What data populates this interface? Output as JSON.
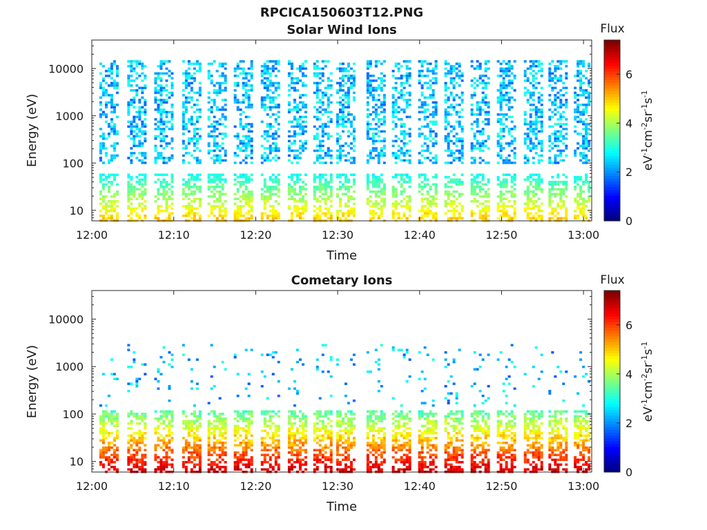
{
  "figure": {
    "title": "RPCICA150603T12.PNG"
  },
  "chart_data": [
    {
      "type": "heatmap",
      "title": "Solar Wind Ions",
      "xlabel": "Time",
      "ylabel": "Energy (eV)",
      "x_tick_labels": [
        "12:00",
        "12:10",
        "12:20",
        "12:30",
        "12:40",
        "12:50",
        "13:00"
      ],
      "x_ticks_minutes": [
        0,
        10,
        20,
        30,
        40,
        50,
        60
      ],
      "xlim_minutes": [
        0,
        61
      ],
      "y_scale": "log",
      "y_tick_labels": [
        "10",
        "100",
        "1000",
        "10000"
      ],
      "y_ticks": [
        10,
        100,
        1000,
        10000
      ],
      "ylim": [
        6,
        40000
      ],
      "colorbar": {
        "label": "Flux",
        "unit": "eV-1cm-2sr-1s-1",
        "range": [
          0,
          7.4
        ],
        "tick_labels": [
          "0",
          "2",
          "4",
          "6"
        ],
        "ticks": [
          0,
          2,
          4,
          6
        ],
        "colormap": "jet"
      },
      "sweep_center_minutes": [
        2.1,
        5.5,
        8.8,
        12.2,
        15.3,
        18.5,
        21.8,
        25.1,
        28.2,
        31.0,
        34.7,
        37.8,
        41.0,
        44.2,
        47.4,
        50.6,
        53.9,
        56.9,
        60.0
      ],
      "features": [
        {
          "name": "low-energy peaks",
          "energy_range": [
            6,
            50
          ],
          "flux_range": [
            3,
            5
          ]
        },
        {
          "name": "high-energy vertical columns",
          "energy_range": [
            100,
            15000
          ],
          "flux_range": [
            1.5,
            3
          ]
        }
      ]
    },
    {
      "type": "heatmap",
      "title": "Cometary Ions",
      "xlabel": "Time",
      "ylabel": "Energy (eV)",
      "x_tick_labels": [
        "12:00",
        "12:10",
        "12:20",
        "12:30",
        "12:40",
        "12:50",
        "13:00"
      ],
      "x_ticks_minutes": [
        0,
        10,
        20,
        30,
        40,
        50,
        60
      ],
      "xlim_minutes": [
        0,
        61
      ],
      "y_scale": "log",
      "y_tick_labels": [
        "10",
        "100",
        "1000",
        "10000"
      ],
      "y_ticks": [
        10,
        100,
        1000,
        10000
      ],
      "ylim": [
        6,
        40000
      ],
      "colorbar": {
        "label": "Flux",
        "unit": "eV-1cm-2sr-1s-1",
        "range": [
          0,
          7.4
        ],
        "tick_labels": [
          "0",
          "2",
          "4",
          "6"
        ],
        "ticks": [
          0,
          2,
          4,
          6
        ],
        "colormap": "jet"
      },
      "sweep_center_minutes": [
        2.1,
        5.5,
        8.8,
        12.2,
        15.3,
        18.5,
        21.8,
        25.1,
        28.2,
        31.0,
        34.7,
        37.8,
        41.0,
        44.2,
        47.4,
        50.6,
        53.9,
        56.9,
        60.0
      ],
      "features": [
        {
          "name": "low-energy intense peaks",
          "energy_range": [
            6,
            40
          ],
          "flux_range": [
            5,
            7
          ]
        },
        {
          "name": "sparse high-energy points",
          "energy_range": [
            200,
            3000
          ],
          "flux_range": [
            1.5,
            3
          ]
        }
      ]
    }
  ]
}
